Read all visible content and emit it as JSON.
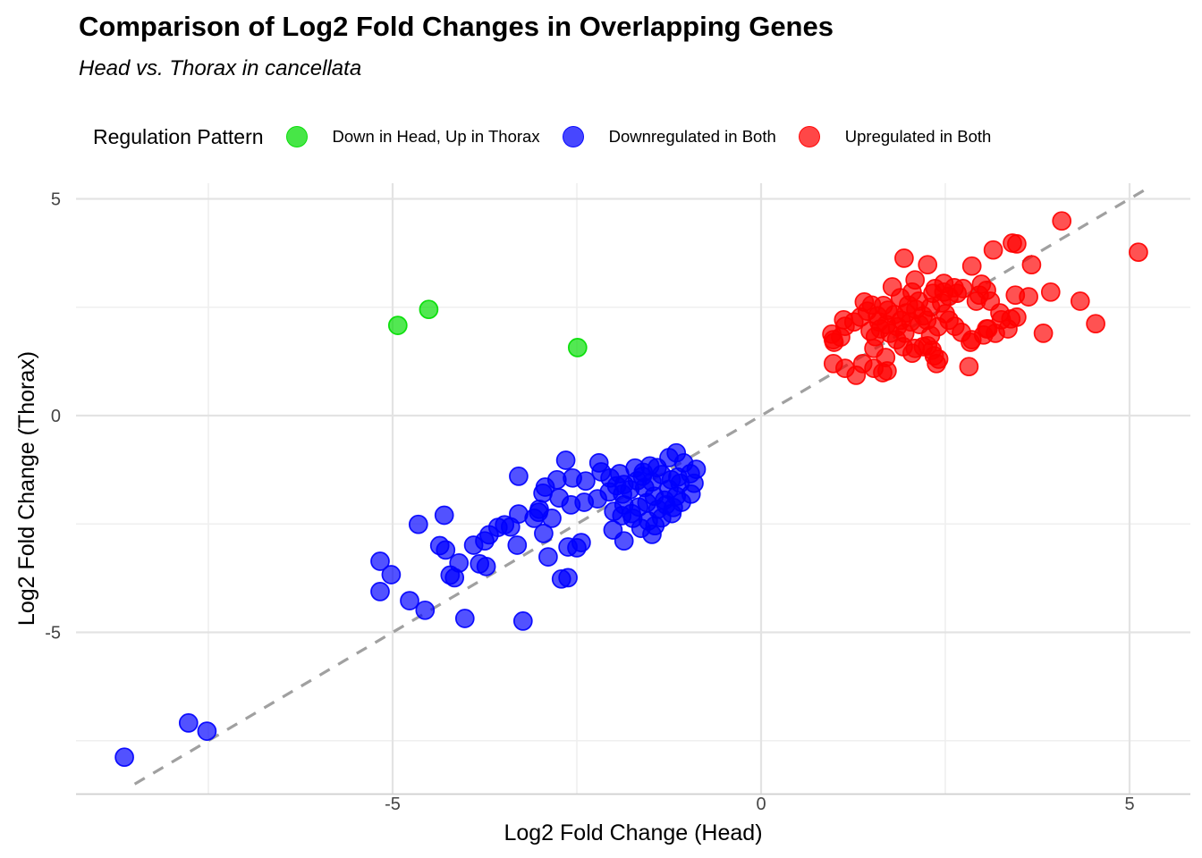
{
  "header": {
    "title": "Comparison of Log2 Fold Changes in Overlapping Genes",
    "subtitle": "Head vs. Thorax in cancellata"
  },
  "legend": {
    "title": "Regulation Pattern",
    "items": [
      {
        "label": "Down in Head, Up in Thorax",
        "color": "#00dd00"
      },
      {
        "label": "Downregulated in Both",
        "color": "#0000ff"
      },
      {
        "label": "Upregulated in Both",
        "color": "#ff0000"
      }
    ]
  },
  "chart_data": {
    "type": "scatter",
    "title": "Comparison of Log2 Fold Changes in Overlapping Genes",
    "subtitle": "Head vs. Thorax in cancellata",
    "xlabel": "Log2 Fold Change (Head)",
    "ylabel": "Log2 Fold Change (Thorax)",
    "xlim": [
      -9.3,
      5.8
    ],
    "ylim": [
      -8.7,
      5.4
    ],
    "x_ticks": [
      -5,
      0,
      5
    ],
    "y_ticks": [
      -5,
      0,
      5
    ],
    "x_minor_ticks": [
      -7.5,
      -2.5,
      2.5
    ],
    "y_minor_ticks": [
      -7.5,
      -2.5,
      2.5
    ],
    "grid": "major+minor",
    "legend_position": "top",
    "grid_major_color": "#e3e3e3",
    "grid_minor_color": "#efefef",
    "axis_line_color": "#cfcfcf",
    "tick_label_color": "#454545",
    "identity_line": {
      "style": "dashed",
      "color": "#a0a0a0",
      "from": [
        -8.5,
        -8.5
      ],
      "to": [
        5.25,
        5.25
      ]
    },
    "series": [
      {
        "name": "Down in Head, Up in Thorax",
        "color": "#00dd00",
        "points": [
          [
            -4.93,
            2.08
          ],
          [
            -4.51,
            2.45
          ],
          [
            -2.49,
            1.57
          ]
        ]
      },
      {
        "name": "Downregulated in Both",
        "color": "#0000ff",
        "points": [
          [
            -8.64,
            -7.88
          ],
          [
            -7.77,
            -7.09
          ],
          [
            -7.52,
            -7.28
          ],
          [
            -5.17,
            -3.36
          ],
          [
            -5.02,
            -3.67
          ],
          [
            -5.17,
            -4.06
          ],
          [
            -4.77,
            -4.27
          ],
          [
            -4.56,
            -4.49
          ],
          [
            -4.02,
            -4.68
          ],
          [
            -3.23,
            -4.74
          ],
          [
            -4.65,
            -2.51
          ],
          [
            -4.3,
            -2.3
          ],
          [
            -4.36,
            -3.0
          ],
          [
            -4.28,
            -3.1
          ],
          [
            -3.9,
            -2.99
          ],
          [
            -3.75,
            -2.89
          ],
          [
            -3.69,
            -2.75
          ],
          [
            -3.57,
            -2.58
          ],
          [
            -3.48,
            -2.52
          ],
          [
            -3.4,
            -2.57
          ],
          [
            -3.29,
            -2.27
          ],
          [
            -3.08,
            -2.37
          ],
          [
            -3.01,
            -2.16
          ],
          [
            -2.95,
            -2.72
          ],
          [
            -3.31,
            -2.99
          ],
          [
            -4.1,
            -3.4
          ],
          [
            -4.22,
            -3.68
          ],
          [
            -4.16,
            -3.74
          ],
          [
            -3.82,
            -3.42
          ],
          [
            -3.73,
            -3.48
          ],
          [
            -3.29,
            -1.4
          ],
          [
            -2.93,
            -1.65
          ],
          [
            -2.65,
            -1.03
          ],
          [
            -2.2,
            -1.09
          ],
          [
            -2.17,
            -1.3
          ],
          [
            -1.92,
            -1.34
          ],
          [
            -2.77,
            -1.48
          ],
          [
            -2.56,
            -1.44
          ],
          [
            -2.38,
            -1.51
          ],
          [
            -2.96,
            -1.79
          ],
          [
            -2.74,
            -1.9
          ],
          [
            -2.58,
            -2.06
          ],
          [
            -2.4,
            -2.0
          ],
          [
            -2.22,
            -1.92
          ],
          [
            -2.05,
            -1.44
          ],
          [
            -1.86,
            -1.59
          ],
          [
            -1.61,
            -1.4
          ],
          [
            -1.41,
            -1.2
          ],
          [
            -1.25,
            -0.97
          ],
          [
            -1.89,
            -2.31
          ],
          [
            -1.74,
            -2.37
          ],
          [
            -1.53,
            -2.43
          ],
          [
            -1.44,
            -2.54
          ],
          [
            -2.01,
            -2.64
          ],
          [
            -1.86,
            -2.89
          ],
          [
            -2.44,
            -2.93
          ],
          [
            -2.5,
            -3.05
          ],
          [
            -2.62,
            -3.03
          ],
          [
            -2.89,
            -3.26
          ],
          [
            -2.71,
            -3.77
          ],
          [
            -2.62,
            -3.74
          ],
          [
            -1.29,
            -2.06
          ],
          [
            -1.19,
            -2.12
          ],
          [
            -2.84,
            -2.37
          ],
          [
            -3.02,
            -2.23
          ],
          [
            -1.05,
            -1.09
          ],
          [
            -0.96,
            -1.34
          ],
          [
            -1.13,
            -1.42
          ],
          [
            -0.88,
            -1.24
          ],
          [
            -1.1,
            -1.56
          ],
          [
            -1.22,
            -1.48
          ],
          [
            -1.35,
            -1.36
          ],
          [
            -1.48,
            -1.53
          ],
          [
            -1.58,
            -1.66
          ],
          [
            -1.68,
            -1.5
          ],
          [
            -1.78,
            -1.71
          ],
          [
            -1.88,
            -1.81
          ],
          [
            -1.96,
            -1.62
          ],
          [
            -2.06,
            -1.76
          ],
          [
            -1.25,
            -1.7
          ],
          [
            -1.15,
            -1.86
          ],
          [
            -1.31,
            -1.95
          ],
          [
            -1.45,
            -1.86
          ],
          [
            -1.55,
            -2.01
          ],
          [
            -1.66,
            -2.11
          ],
          [
            -1.4,
            -2.16
          ],
          [
            -1.21,
            -2.26
          ],
          [
            -1.08,
            -2.0
          ],
          [
            -0.95,
            -1.81
          ],
          [
            -0.91,
            -1.56
          ],
          [
            -1.76,
            -2.26
          ],
          [
            -1.86,
            -2.06
          ],
          [
            -2.0,
            -2.21
          ],
          [
            -1.6,
            -1.31
          ],
          [
            -1.51,
            -1.16
          ],
          [
            -1.71,
            -1.21
          ],
          [
            -1.35,
            -2.36
          ],
          [
            -1.63,
            -2.6
          ],
          [
            -1.48,
            -2.74
          ],
          [
            -1.15,
            -0.86
          ]
        ]
      },
      {
        "name": "Upregulated in Both",
        "color": "#ff0000",
        "points": [
          [
            1.94,
            3.63
          ],
          [
            2.26,
            3.48
          ],
          [
            2.86,
            3.45
          ],
          [
            3.15,
            3.82
          ],
          [
            1.78,
            2.97
          ],
          [
            2.09,
            3.13
          ],
          [
            2.05,
            2.85
          ],
          [
            2.33,
            2.82
          ],
          [
            2.36,
            2.93
          ],
          [
            2.48,
            3.05
          ],
          [
            2.48,
            2.85
          ],
          [
            2.62,
            2.95
          ],
          [
            2.66,
            2.82
          ],
          [
            2.74,
            2.93
          ],
          [
            2.99,
            3.03
          ],
          [
            2.96,
            2.78
          ],
          [
            2.92,
            2.64
          ],
          [
            3.11,
            2.64
          ],
          [
            1.5,
            2.55
          ],
          [
            1.44,
            2.41
          ],
          [
            1.72,
            2.43
          ],
          [
            1.66,
            2.54
          ],
          [
            1.81,
            2.33
          ],
          [
            1.97,
            2.37
          ],
          [
            1.89,
            2.72
          ],
          [
            2.14,
            2.64
          ],
          [
            2.03,
            2.16
          ],
          [
            1.26,
            2.16
          ],
          [
            1.14,
            2.06
          ],
          [
            1.08,
            1.81
          ],
          [
            0.98,
            1.75
          ],
          [
            1.6,
            2.16
          ],
          [
            1.53,
            1.55
          ],
          [
            1.69,
            1.34
          ],
          [
            1.84,
            1.75
          ],
          [
            1.93,
            1.59
          ],
          [
            2.09,
            1.55
          ],
          [
            2.26,
            1.61
          ],
          [
            2.35,
            1.38
          ],
          [
            2.63,
            2.06
          ],
          [
            2.72,
            1.92
          ],
          [
            2.86,
            1.75
          ],
          [
            3.06,
            2.0
          ],
          [
            3.24,
            2.37
          ],
          [
            2.82,
            1.13
          ],
          [
            2.38,
            1.2
          ],
          [
            1.53,
            1.09
          ],
          [
            1.38,
            1.2
          ],
          [
            1.65,
            0.99
          ],
          [
            0.96,
            1.88
          ],
          [
            0.99,
            1.69
          ],
          [
            0.98,
            1.2
          ],
          [
            1.14,
            1.09
          ],
          [
            1.29,
            0.93
          ],
          [
            1.71,
            1.03
          ],
          [
            2.05,
            1.44
          ],
          [
            2.2,
            1.59
          ],
          [
            2.32,
            1.51
          ],
          [
            2.41,
            1.3
          ],
          [
            2.84,
            1.69
          ],
          [
            3.02,
            1.86
          ],
          [
            3.35,
            2.0
          ],
          [
            4.08,
            4.49
          ],
          [
            3.41,
            3.98
          ],
          [
            3.47,
            3.96
          ],
          [
            3.67,
            3.48
          ],
          [
            5.12,
            3.77
          ],
          [
            3.06,
            2.89
          ],
          [
            3.45,
            2.78
          ],
          [
            3.63,
            2.74
          ],
          [
            3.93,
            2.85
          ],
          [
            4.33,
            2.64
          ],
          [
            3.26,
            2.21
          ],
          [
            3.39,
            2.23
          ],
          [
            3.47,
            2.27
          ],
          [
            3.08,
            2.0
          ],
          [
            3.18,
            1.9
          ],
          [
            3.83,
            1.9
          ],
          [
            4.54,
            2.12
          ],
          [
            1.48,
            1.95
          ],
          [
            1.55,
            1.82
          ],
          [
            1.62,
            2.0
          ],
          [
            1.7,
            2.1
          ],
          [
            1.58,
            2.3
          ],
          [
            1.75,
            1.9
          ],
          [
            1.85,
            2.05
          ],
          [
            1.9,
            2.2
          ],
          [
            2.0,
            2.55
          ],
          [
            2.1,
            2.45
          ],
          [
            2.2,
            2.3
          ],
          [
            2.15,
            2.1
          ],
          [
            2.25,
            2.2
          ],
          [
            2.3,
            2.5
          ],
          [
            2.45,
            2.6
          ],
          [
            2.5,
            2.35
          ],
          [
            2.55,
            2.2
          ],
          [
            2.4,
            2.05
          ],
          [
            1.95,
            1.9
          ],
          [
            2.3,
            1.85
          ],
          [
            1.35,
            2.27
          ],
          [
            1.12,
            2.21
          ],
          [
            2.55,
            2.75
          ],
          [
            1.4,
            2.62
          ]
        ]
      }
    ]
  }
}
